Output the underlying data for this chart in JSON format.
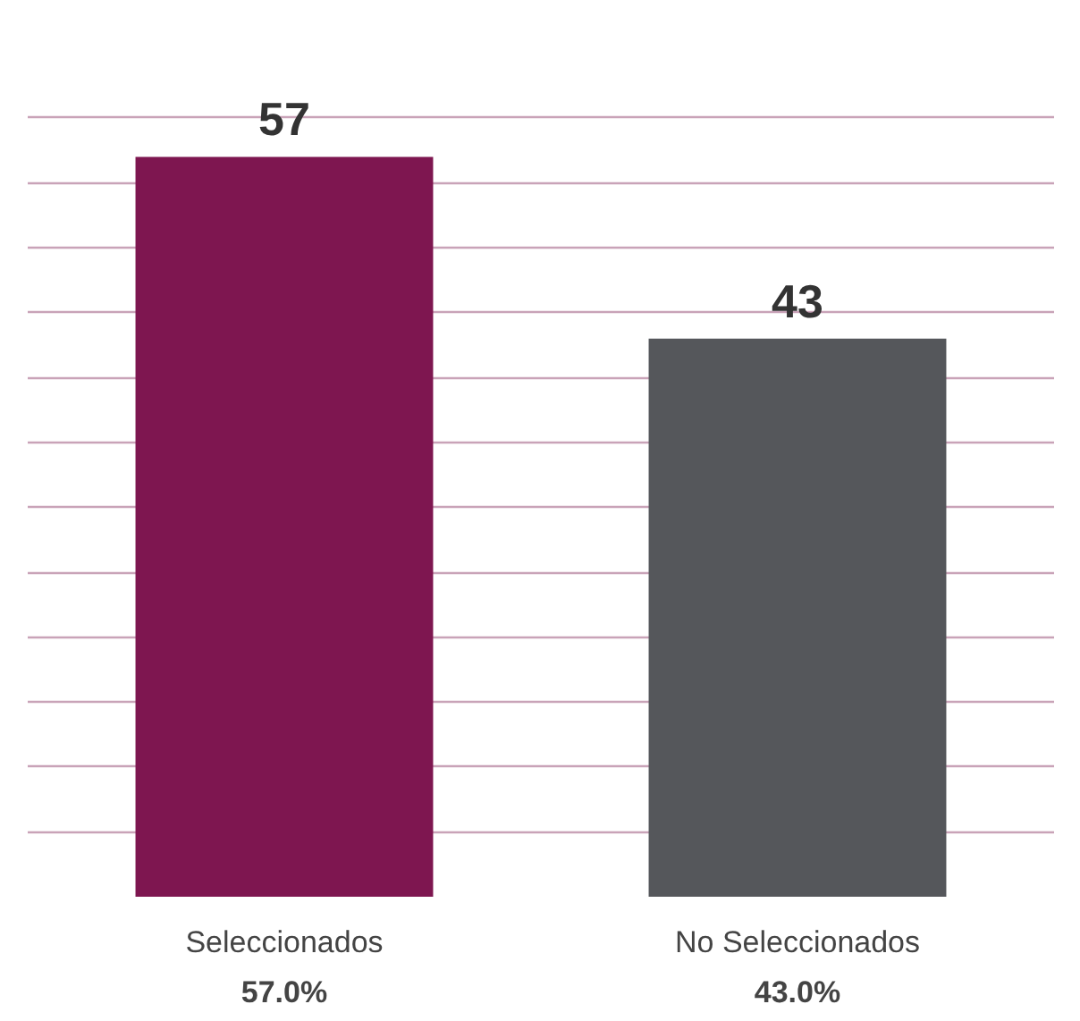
{
  "chart_data": {
    "type": "bar",
    "categories": [
      "Seleccionados",
      "No Seleccionados"
    ],
    "values": [
      57,
      43
    ],
    "colors": [
      "#7e1650",
      "#55575b"
    ],
    "data_labels": true,
    "grid": "y",
    "tick_labels": "x",
    "annotations": [
      "57.0%",
      "43.0%"
    ]
  }
}
